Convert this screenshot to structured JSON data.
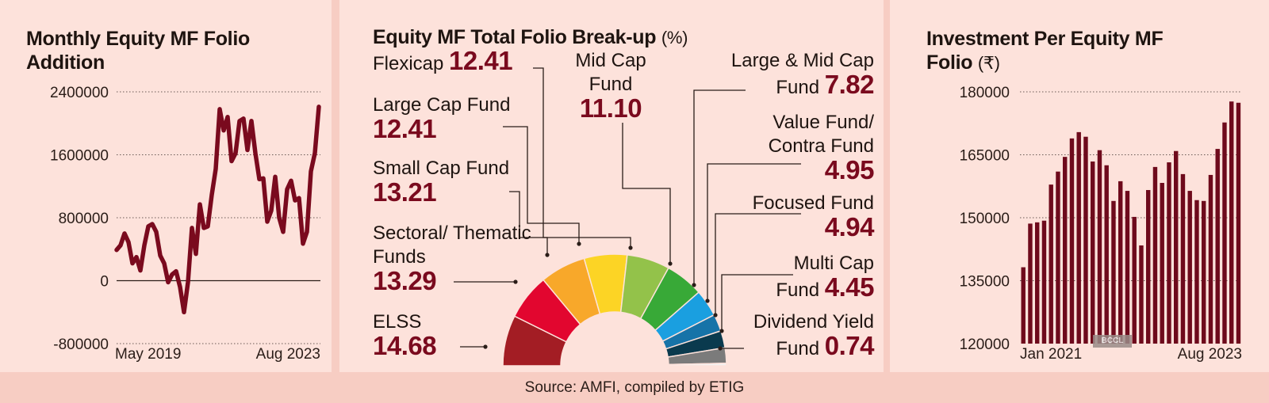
{
  "left": {
    "title": "Monthly Equity MF Folio Addition"
  },
  "middle": {
    "title": "Equity MF Total Folio Break-up",
    "unit": "(%)"
  },
  "right": {
    "title": "Investment Per Equity MF Folio",
    "unit": "(₹)"
  },
  "source": "Source: AMFI, compiled by ETIG",
  "watermark": "BCCL",
  "chart_data": [
    {
      "type": "line",
      "title": "Monthly Equity MF Folio Addition",
      "x_start": "May 2019",
      "x_end": "Aug 2023",
      "xtick_labels": [
        "May 2019",
        "Aug 2023"
      ],
      "ylim": [
        -800000,
        2400000
      ],
      "yticks": [
        2400000,
        1600000,
        800000,
        0,
        -800000
      ],
      "ytick_labels": [
        "2400000",
        "1600000",
        "800000",
        "0",
        "-800000"
      ],
      "grid": "dotted horizontal",
      "color": "#7a0a1e",
      "values": [
        390000,
        450000,
        600000,
        490000,
        220000,
        300000,
        130000,
        450000,
        690000,
        720000,
        620000,
        320000,
        220000,
        -20000,
        80000,
        120000,
        -80000,
        -400000,
        -20000,
        670000,
        340000,
        970000,
        670000,
        690000,
        1090000,
        1420000,
        2180000,
        1910000,
        2080000,
        1520000,
        1620000,
        2030000,
        2060000,
        1660000,
        2030000,
        1620000,
        1290000,
        1300000,
        750000,
        890000,
        1320000,
        800000,
        620000,
        1160000,
        1270000,
        1020000,
        1050000,
        470000,
        620000,
        1390000,
        1620000,
        2210000
      ]
    },
    {
      "type": "pie",
      "variant": "half-donut",
      "title": "Equity MF Total Folio Break-up (%)",
      "slices": [
        {
          "label": "ELSS",
          "value": 14.68,
          "value_text": "14.68",
          "color": "#a31d24"
        },
        {
          "label": "Sectoral/ Thematic Funds",
          "value": 13.29,
          "value_text": "13.29",
          "color": "#e2062f"
        },
        {
          "label": "Small Cap Fund",
          "value": 13.21,
          "value_text": "13.21",
          "color": "#f8a82a"
        },
        {
          "label": "Large Cap Fund",
          "value": 12.41,
          "value_text": "12.41",
          "color": "#fcd425"
        },
        {
          "label": "Flexicap",
          "value": 12.41,
          "value_text": "12.41",
          "color": "#93c24a"
        },
        {
          "label": "Mid Cap Fund",
          "value": 11.1,
          "value_text": "11.10",
          "color": "#38a937"
        },
        {
          "label": "Large & Mid Cap Fund",
          "value": 7.82,
          "value_text": "7.82",
          "color": "#1a9fe0"
        },
        {
          "label": "Value Fund/ Contra Fund",
          "value": 4.95,
          "value_text": "4.95",
          "color": "#1673a8"
        },
        {
          "label": "Focused Fund",
          "value": 4.94,
          "value_text": "4.94",
          "color": "#0a3a4e"
        },
        {
          "label": "Multi Cap Fund",
          "value": 4.45,
          "value_text": "4.45",
          "color": "#7b7b7b"
        },
        {
          "label": "Dividend Yield Fund",
          "value": 0.74,
          "value_text": "0.74",
          "color": "#f3f3f3"
        }
      ]
    },
    {
      "type": "bar",
      "title": "Investment Per Equity MF Folio (₹)",
      "x_start": "Jan 2021",
      "x_end": "Aug 2023",
      "xtick_labels": [
        "Jan 2021",
        "Aug 2023"
      ],
      "ylim": [
        120000,
        180000
      ],
      "yticks": [
        180000,
        165000,
        150000,
        135000,
        120000
      ],
      "ytick_labels": [
        "180000",
        "165000",
        "150000",
        "135000",
        "120000"
      ],
      "grid": "dotted horizontal",
      "color": "#6e0a1c",
      "values": [
        138200,
        148600,
        148900,
        149300,
        157900,
        161000,
        164500,
        168900,
        170400,
        169300,
        163400,
        166100,
        162500,
        154000,
        158700,
        156400,
        150200,
        143400,
        156600,
        162100,
        158300,
        163200,
        165900,
        160400,
        156400,
        154200,
        154000,
        160200,
        166400,
        172700,
        177700,
        177400
      ]
    }
  ]
}
